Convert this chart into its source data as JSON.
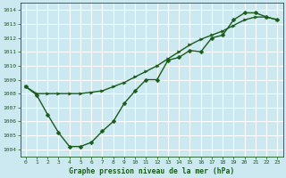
{
  "title": "Graphe pression niveau de la mer (hPa)",
  "background_color": "#cce8f0",
  "grid_color": "#ffffff",
  "line_color": "#1a5c1a",
  "xlim_min": -0.5,
  "xlim_max": 23.5,
  "ylim_min": 1003.5,
  "ylim_max": 1014.5,
  "xticks": [
    0,
    1,
    2,
    3,
    4,
    5,
    6,
    7,
    8,
    9,
    10,
    11,
    12,
    13,
    14,
    15,
    16,
    17,
    18,
    19,
    20,
    21,
    22,
    23
  ],
  "yticks": [
    1004,
    1005,
    1006,
    1007,
    1008,
    1009,
    1010,
    1011,
    1012,
    1013,
    1014
  ],
  "series1_x": [
    0,
    1,
    2,
    3,
    4,
    5,
    6,
    7,
    8,
    9,
    10,
    11,
    12,
    13,
    14,
    15,
    16,
    17,
    18,
    19,
    20,
    21,
    22,
    23
  ],
  "series1_y": [
    1008.5,
    1007.9,
    1006.5,
    1005.2,
    1004.2,
    1004.2,
    1004.5,
    1005.3,
    1006.0,
    1007.3,
    1008.2,
    1009.0,
    1009.0,
    1010.4,
    1010.6,
    1011.1,
    1011.0,
    1012.0,
    1012.2,
    1013.3,
    1013.8,
    1013.8,
    1013.5,
    1013.3
  ],
  "series2_x": [
    0,
    1,
    2,
    3,
    4,
    5,
    6,
    7,
    8,
    9,
    10,
    11,
    12,
    13,
    14,
    15,
    16,
    17,
    18,
    19,
    20,
    21,
    22,
    23
  ],
  "series2_y": [
    1008.5,
    1008.0,
    1008.0,
    1008.0,
    1008.0,
    1008.0,
    1008.1,
    1008.2,
    1008.5,
    1008.8,
    1009.2,
    1009.6,
    1010.0,
    1010.5,
    1011.0,
    1011.5,
    1011.9,
    1012.2,
    1012.5,
    1012.9,
    1013.3,
    1013.5,
    1013.5,
    1013.3
  ],
  "xlabel_fontsize": 5.8,
  "tick_fontsize": 4.5,
  "linewidth": 1.0,
  "markersize": 2.5
}
